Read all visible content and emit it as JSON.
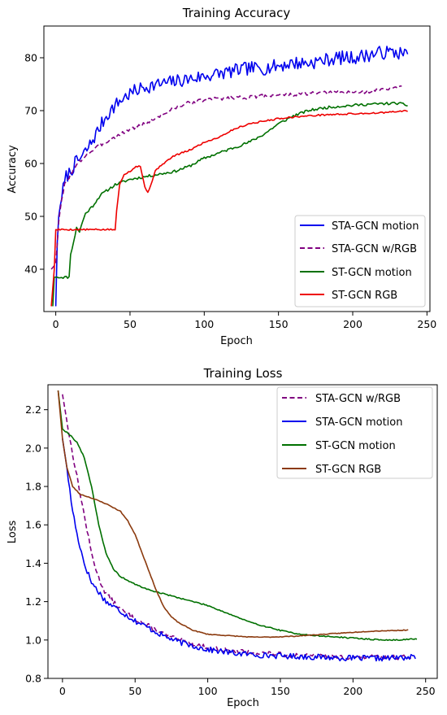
{
  "chart_data": [
    {
      "type": "line",
      "title": "Training Accuracy",
      "xlabel": "Epoch",
      "ylabel": "Accuracy",
      "xlim": [
        -8,
        252
      ],
      "ylim": [
        32,
        86
      ],
      "xticks": [
        0,
        50,
        100,
        150,
        200,
        250
      ],
      "yticks": [
        40,
        50,
        60,
        70,
        80
      ],
      "grid": false,
      "legend": "lower-right",
      "series": [
        {
          "name": "STA-GCN motion",
          "color": "#0000ee",
          "dash": "solid",
          "noise": 1.3,
          "seed": 7,
          "points": [
            [
              0,
              33
            ],
            [
              1,
              45
            ],
            [
              2,
              50
            ],
            [
              4,
              54
            ],
            [
              7,
              57.5
            ],
            [
              10,
              58.5
            ],
            [
              13,
              60
            ],
            [
              17,
              61
            ],
            [
              22,
              63
            ],
            [
              26,
              65
            ],
            [
              30,
              67
            ],
            [
              34,
              69
            ],
            [
              40,
              71
            ],
            [
              46,
              72.5
            ],
            [
              52,
              73.5
            ],
            [
              60,
              74.5
            ],
            [
              70,
              75
            ],
            [
              80,
              75.5
            ],
            [
              90,
              76
            ],
            [
              100,
              76.5
            ],
            [
              110,
              77
            ],
            [
              120,
              77.5
            ],
            [
              130,
              78
            ],
            [
              140,
              78
            ],
            [
              150,
              78.5
            ],
            [
              160,
              79
            ],
            [
              170,
              79
            ],
            [
              180,
              79.5
            ],
            [
              190,
              80
            ],
            [
              200,
              80
            ],
            [
              210,
              80.5
            ],
            [
              220,
              81
            ],
            [
              230,
              81
            ],
            [
              237,
              80.5
            ]
          ]
        },
        {
          "name": "STA-GCN w/RGB",
          "color": "#800080",
          "dash": "dashed",
          "noise": 0.35,
          "seed": 3,
          "points": [
            [
              -3,
              40
            ],
            [
              0,
              41
            ],
            [
              2,
              49
            ],
            [
              4,
              53
            ],
            [
              6,
              56
            ],
            [
              10,
              58
            ],
            [
              15,
              60
            ],
            [
              20,
              61.5
            ],
            [
              30,
              63.5
            ],
            [
              40,
              65
            ],
            [
              50,
              66.5
            ],
            [
              60,
              67.5
            ],
            [
              70,
              69
            ],
            [
              80,
              70.5
            ],
            [
              90,
              71.5
            ],
            [
              100,
              72
            ],
            [
              110,
              72.3
            ],
            [
              120,
              72.5
            ],
            [
              130,
              72.5
            ],
            [
              140,
              72.8
            ],
            [
              150,
              73
            ],
            [
              160,
              73
            ],
            [
              170,
              73.2
            ],
            [
              180,
              73.3
            ],
            [
              190,
              73.5
            ],
            [
              200,
              73.5
            ],
            [
              210,
              73.6
            ],
            [
              220,
              74
            ],
            [
              230,
              74.3
            ],
            [
              233,
              74.5
            ]
          ]
        },
        {
          "name": "ST-GCN motion",
          "color": "#007000",
          "dash": "solid",
          "noise": 0.25,
          "seed": 11,
          "points": [
            [
              -2,
              33
            ],
            [
              -1,
              38.5
            ],
            [
              0,
              38.5
            ],
            [
              9,
              38.5
            ],
            [
              10,
              43
            ],
            [
              12,
              45
            ],
            [
              14,
              48
            ],
            [
              16,
              47
            ],
            [
              18,
              49
            ],
            [
              20,
              50.5
            ],
            [
              25,
              52
            ],
            [
              30,
              54
            ],
            [
              35,
              55
            ],
            [
              40,
              56
            ],
            [
              50,
              57
            ],
            [
              60,
              57.5
            ],
            [
              70,
              58
            ],
            [
              80,
              58.5
            ],
            [
              90,
              59.5
            ],
            [
              100,
              61
            ],
            [
              110,
              62
            ],
            [
              120,
              63
            ],
            [
              130,
              64
            ],
            [
              140,
              65.5
            ],
            [
              150,
              67.5
            ],
            [
              160,
              69
            ],
            [
              170,
              70
            ],
            [
              180,
              70.5
            ],
            [
              190,
              70.8
            ],
            [
              200,
              71
            ],
            [
              210,
              71.2
            ],
            [
              220,
              71.3
            ],
            [
              230,
              71.4
            ],
            [
              237,
              71
            ]
          ]
        },
        {
          "name": "ST-GCN RGB",
          "color": "#ee0000",
          "dash": "solid",
          "noise": 0.15,
          "seed": 5,
          "points": [
            [
              -3,
              33
            ],
            [
              -1,
              40
            ],
            [
              0,
              47.5
            ],
            [
              10,
              47.5
            ],
            [
              20,
              47.5
            ],
            [
              30,
              47.5
            ],
            [
              40,
              47.5
            ],
            [
              41,
              51
            ],
            [
              43,
              56
            ],
            [
              46,
              58
            ],
            [
              50,
              58.5
            ],
            [
              54,
              59.5
            ],
            [
              57,
              59.5
            ],
            [
              60,
              55.5
            ],
            [
              62,
              54.5
            ],
            [
              64,
              56
            ],
            [
              67,
              58.5
            ],
            [
              70,
              59.5
            ],
            [
              75,
              60.5
            ],
            [
              80,
              61.5
            ],
            [
              90,
              62.5
            ],
            [
              100,
              64
            ],
            [
              110,
              65
            ],
            [
              120,
              66.5
            ],
            [
              130,
              67.5
            ],
            [
              140,
              68
            ],
            [
              150,
              68.5
            ],
            [
              160,
              68.8
            ],
            [
              170,
              69
            ],
            [
              180,
              69.2
            ],
            [
              190,
              69.3
            ],
            [
              200,
              69.4
            ],
            [
              210,
              69.5
            ],
            [
              220,
              69.6
            ],
            [
              230,
              69.8
            ],
            [
              237,
              70
            ]
          ]
        }
      ]
    },
    {
      "type": "line",
      "title": "Training Loss",
      "xlabel": "Epoch",
      "ylabel": "Loss",
      "xlim": [
        -10,
        258
      ],
      "ylim": [
        0.8,
        2.33
      ],
      "xticks": [
        0,
        50,
        100,
        150,
        200,
        250
      ],
      "yticks": [
        0.8,
        1.0,
        1.2,
        1.4,
        1.6,
        1.8,
        2.0,
        2.2
      ],
      "grid": false,
      "legend": "upper-right",
      "series": [
        {
          "name": "STA-GCN w/RGB",
          "color": "#800080",
          "dash": "dashed",
          "noise": 0.012,
          "seed": 13,
          "points": [
            [
              0,
              2.28
            ],
            [
              5,
              2.05
            ],
            [
              10,
              1.85
            ],
            [
              15,
              1.65
            ],
            [
              20,
              1.45
            ],
            [
              25,
              1.32
            ],
            [
              30,
              1.24
            ],
            [
              40,
              1.16
            ],
            [
              50,
              1.11
            ],
            [
              60,
              1.07
            ],
            [
              70,
              1.03
            ],
            [
              80,
              1.0
            ],
            [
              90,
              0.98
            ],
            [
              100,
              0.96
            ],
            [
              120,
              0.94
            ],
            [
              140,
              0.93
            ],
            [
              160,
              0.92
            ],
            [
              180,
              0.915
            ],
            [
              200,
              0.91
            ],
            [
              220,
              0.91
            ],
            [
              240,
              0.91
            ]
          ]
        },
        {
          "name": "STA-GCN motion",
          "color": "#0000ee",
          "dash": "solid",
          "noise": 0.015,
          "seed": 17,
          "points": [
            [
              0,
              2.05
            ],
            [
              3,
              1.9
            ],
            [
              6,
              1.72
            ],
            [
              10,
              1.55
            ],
            [
              15,
              1.4
            ],
            [
              20,
              1.3
            ],
            [
              25,
              1.25
            ],
            [
              30,
              1.2
            ],
            [
              40,
              1.15
            ],
            [
              50,
              1.1
            ],
            [
              60,
              1.06
            ],
            [
              70,
              1.02
            ],
            [
              80,
              0.99
            ],
            [
              90,
              0.97
            ],
            [
              100,
              0.95
            ],
            [
              120,
              0.93
            ],
            [
              140,
              0.92
            ],
            [
              160,
              0.915
            ],
            [
              180,
              0.91
            ],
            [
              200,
              0.905
            ],
            [
              220,
              0.905
            ],
            [
              240,
              0.91
            ],
            [
              243,
              0.91
            ]
          ]
        },
        {
          "name": "ST-GCN motion",
          "color": "#007000",
          "dash": "solid",
          "noise": 0.003,
          "seed": 19,
          "points": [
            [
              -3,
              2.3
            ],
            [
              0,
              2.1
            ],
            [
              5,
              2.07
            ],
            [
              10,
              2.03
            ],
            [
              15,
              1.95
            ],
            [
              20,
              1.8
            ],
            [
              25,
              1.6
            ],
            [
              30,
              1.45
            ],
            [
              35,
              1.37
            ],
            [
              40,
              1.33
            ],
            [
              50,
              1.29
            ],
            [
              60,
              1.26
            ],
            [
              70,
              1.24
            ],
            [
              80,
              1.22
            ],
            [
              90,
              1.2
            ],
            [
              100,
              1.18
            ],
            [
              110,
              1.15
            ],
            [
              120,
              1.12
            ],
            [
              130,
              1.09
            ],
            [
              140,
              1.07
            ],
            [
              150,
              1.05
            ],
            [
              160,
              1.035
            ],
            [
              170,
              1.025
            ],
            [
              180,
              1.02
            ],
            [
              190,
              1.015
            ],
            [
              200,
              1.01
            ],
            [
              210,
              1.005
            ],
            [
              220,
              1.0
            ],
            [
              230,
              1.0
            ],
            [
              240,
              1.005
            ],
            [
              244,
              1.005
            ]
          ]
        },
        {
          "name": "ST-GCN RGB",
          "color": "#8b3a0e",
          "dash": "solid",
          "noise": 0.002,
          "seed": 23,
          "points": [
            [
              -3,
              2.3
            ],
            [
              0,
              2.05
            ],
            [
              3,
              1.9
            ],
            [
              7,
              1.8
            ],
            [
              12,
              1.76
            ],
            [
              20,
              1.74
            ],
            [
              30,
              1.71
            ],
            [
              40,
              1.67
            ],
            [
              45,
              1.62
            ],
            [
              50,
              1.55
            ],
            [
              55,
              1.45
            ],
            [
              60,
              1.35
            ],
            [
              65,
              1.25
            ],
            [
              70,
              1.17
            ],
            [
              75,
              1.12
            ],
            [
              80,
              1.09
            ],
            [
              90,
              1.05
            ],
            [
              100,
              1.03
            ],
            [
              110,
              1.025
            ],
            [
              120,
              1.02
            ],
            [
              130,
              1.015
            ],
            [
              140,
              1.015
            ],
            [
              150,
              1.017
            ],
            [
              160,
              1.02
            ],
            [
              170,
              1.025
            ],
            [
              180,
              1.03
            ],
            [
              190,
              1.035
            ],
            [
              200,
              1.04
            ],
            [
              210,
              1.045
            ],
            [
              220,
              1.048
            ],
            [
              230,
              1.05
            ],
            [
              238,
              1.052
            ]
          ]
        }
      ]
    }
  ]
}
